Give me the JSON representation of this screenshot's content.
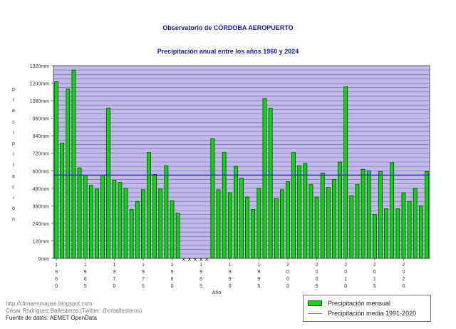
{
  "chart_data": {
    "type": "bar",
    "title": "Observatorio de CÓRDOBA AEROPUERTO",
    "subtitle": "Precipitación anual entre los años 1960 y 2024",
    "xlabel": "Año",
    "ylabel": "precipitación",
    "ylim": [
      0,
      1320
    ],
    "y_ticks": [
      "0mm",
      "120mm",
      "240mm",
      "360mm",
      "480mm",
      "600mm",
      "720mm",
      "840mm",
      "960mm",
      "1080mm",
      "1200mm",
      "1320mm"
    ],
    "y_tick_values": [
      0,
      120,
      240,
      360,
      480,
      600,
      720,
      840,
      960,
      1080,
      1200,
      1320
    ],
    "x_tick_labels": [
      "1960",
      "1965",
      "1970",
      "1975",
      "1980",
      "1985",
      "1990",
      "1995",
      "2000",
      "2005",
      "2010",
      "2015",
      "2020"
    ],
    "categories": [
      1960,
      1961,
      1962,
      1963,
      1964,
      1965,
      1966,
      1967,
      1968,
      1969,
      1970,
      1971,
      1972,
      1973,
      1974,
      1975,
      1976,
      1977,
      1978,
      1979,
      1980,
      1981,
      1982,
      1983,
      1984,
      1985,
      1986,
      1987,
      1988,
      1989,
      1990,
      1991,
      1992,
      1993,
      1994,
      1995,
      1996,
      1997,
      1998,
      1999,
      2000,
      2001,
      2002,
      2003,
      2004,
      2005,
      2006,
      2007,
      2008,
      2009,
      2010,
      2011,
      2012,
      2013,
      2014,
      2015,
      2016,
      2017,
      2018,
      2019,
      2020,
      2021,
      2022,
      2023,
      2024
    ],
    "series": [
      {
        "name": "Precipitación mensual",
        "color": "#00e000",
        "values": [
          1210,
          790,
          1160,
          1290,
          620,
          570,
          500,
          475,
          570,
          1030,
          535,
          520,
          480,
          335,
          390,
          470,
          725,
          575,
          475,
          635,
          395,
          310,
          null,
          null,
          null,
          null,
          null,
          820,
          470,
          725,
          450,
          630,
          550,
          420,
          335,
          480,
          1095,
          1030,
          410,
          470,
          525,
          725,
          635,
          650,
          505,
          420,
          585,
          485,
          540,
          660,
          1175,
          430,
          505,
          610,
          600,
          300,
          595,
          340,
          655,
          340,
          450,
          390,
          480,
          360,
          595
        ]
      },
      {
        "name": "Precipitación media 1991-2020",
        "color": "#2b2bff",
        "value": 570
      }
    ],
    "missing_marker": "×",
    "legend_position": "bottom-right",
    "grid": true
  },
  "credits": {
    "line1": "http://climaenmapas.blogspot.com",
    "line2": "César Rodríguez Ballesteros (Twitter: @crballesteros)",
    "line3": "Fuente de datos: AEMET OpenData"
  },
  "colors": {
    "plot_background": "#c3b9e8",
    "gridline": "#6b5da6",
    "bar": "#00e000",
    "mean_line": "#2b2bff",
    "title": "#1a1aa6"
  }
}
